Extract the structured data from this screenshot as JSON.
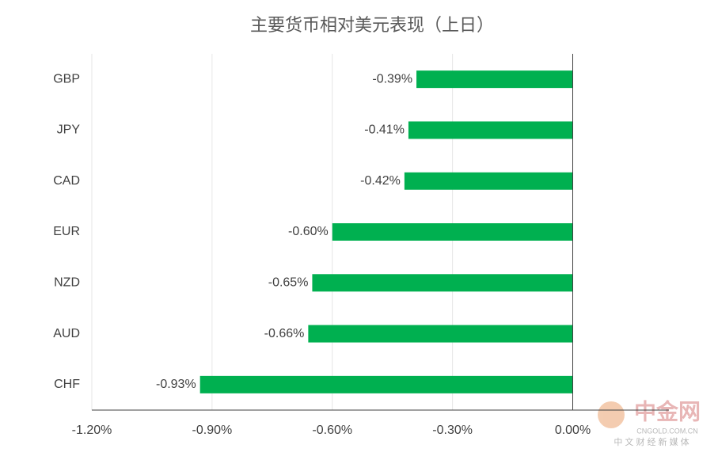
{
  "chart_data": {
    "type": "barh",
    "title": "主要货币相对美元表现（上日）",
    "categories": [
      "GBP",
      "JPY",
      "CAD",
      "EUR",
      "NZD",
      "AUD",
      "CHF"
    ],
    "values": [
      -0.39,
      -0.41,
      -0.42,
      -0.6,
      -0.65,
      -0.66,
      -0.93
    ],
    "value_labels": [
      "-0.39%",
      "-0.41%",
      "-0.42%",
      "-0.60%",
      "-0.65%",
      "-0.66%",
      "-0.93%"
    ],
    "color": "#00b050",
    "xlim": [
      -1.2,
      0.24
    ],
    "xticks": [
      {
        "value": -1.2,
        "label": "-1.20%"
      },
      {
        "value": -0.9,
        "label": "-0.90%"
      },
      {
        "value": -0.6,
        "label": "-0.60%"
      },
      {
        "value": -0.3,
        "label": "-0.30%"
      },
      {
        "value": 0,
        "label": "0.00%"
      }
    ],
    "grid": true
  },
  "watermark": {
    "brand": "中金网",
    "site": "CNGOLD.COM.CN",
    "slogan": "中 文 财 经 新 媒 体"
  }
}
